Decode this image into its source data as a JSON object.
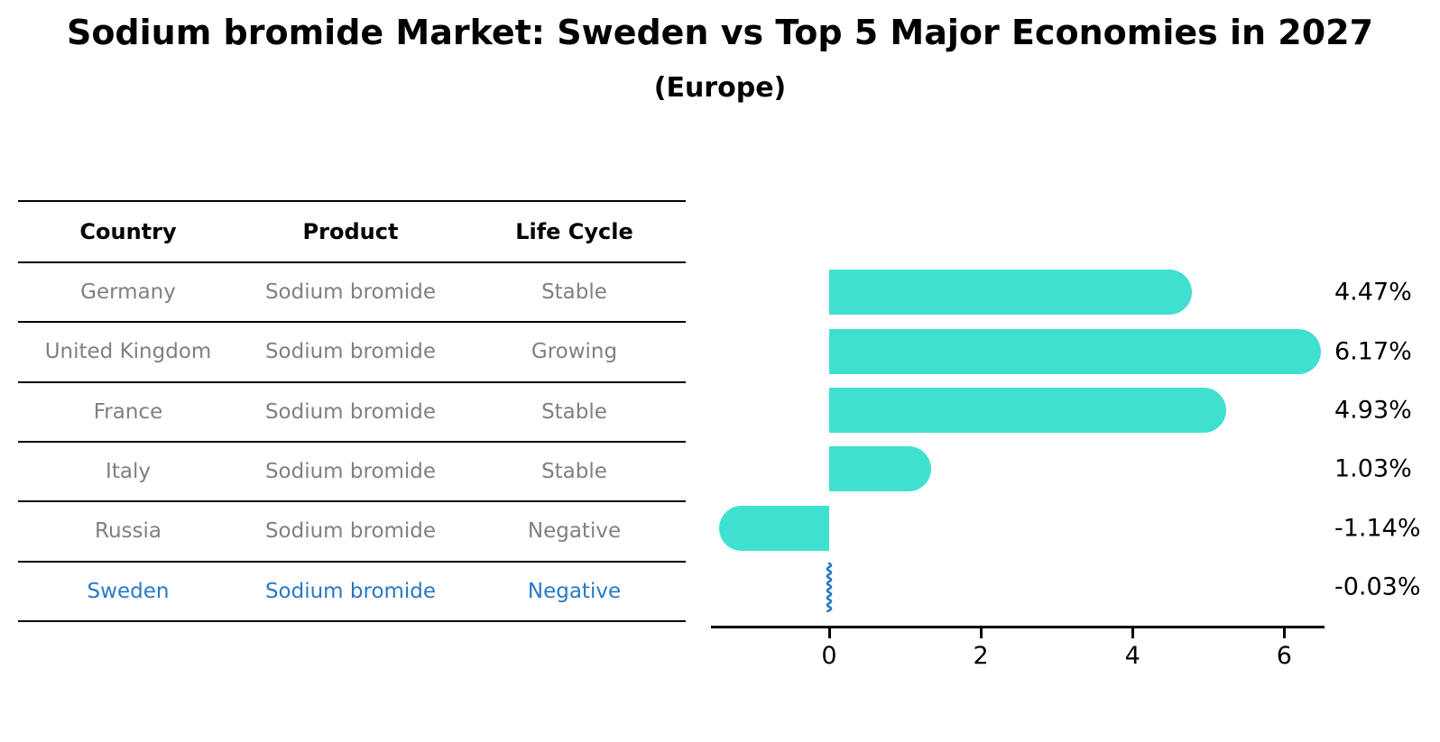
{
  "title": "Sodium bromide Market: Sweden vs Top 5 Major Economies in 2027",
  "subtitle": "(Europe)",
  "colors": {
    "bar": "#40E0D0",
    "highlight": "#2878c8",
    "table_text": "#808080",
    "axis": "#000000"
  },
  "table": {
    "columns": [
      "Country",
      "Product",
      "Life Cycle"
    ],
    "rows": [
      {
        "country": "Germany",
        "product": "Sodium bromide",
        "life_cycle": "Stable",
        "highlight": false
      },
      {
        "country": "United Kingdom",
        "product": "Sodium bromide",
        "life_cycle": "Growing",
        "highlight": false
      },
      {
        "country": "France",
        "product": "Sodium bromide",
        "life_cycle": "Stable",
        "highlight": false
      },
      {
        "country": "Italy",
        "product": "Sodium bromide",
        "life_cycle": "Stable",
        "highlight": false
      },
      {
        "country": "Russia",
        "product": "Sodium bromide",
        "life_cycle": "Negative",
        "highlight": false
      },
      {
        "country": "Sweden",
        "product": "Sodium bromide",
        "life_cycle": "Negative",
        "highlight": true
      }
    ]
  },
  "chart_data": {
    "type": "bar",
    "orientation": "horizontal",
    "categories": [
      "Germany",
      "United Kingdom",
      "France",
      "Italy",
      "Russia",
      "Sweden"
    ],
    "values": [
      4.47,
      6.17,
      4.93,
      1.03,
      -1.14,
      -0.03
    ],
    "value_labels": [
      "4.47%",
      "6.17%",
      "4.93%",
      "1.03%",
      "-1.14%",
      "-0.03%"
    ],
    "x_ticks": [
      0,
      2,
      4,
      6
    ],
    "xlim": [
      -1.56,
      6.53
    ],
    "grid": false,
    "legend": false,
    "highlight_category": "Sweden",
    "bar_color": "#40E0D0",
    "highlight_color": "#2878c8",
    "title": "Sodium bromide Market: Sweden vs Top 5 Major Economies in 2027",
    "subtitle": "(Europe)",
    "xlabel": "",
    "ylabel": ""
  }
}
